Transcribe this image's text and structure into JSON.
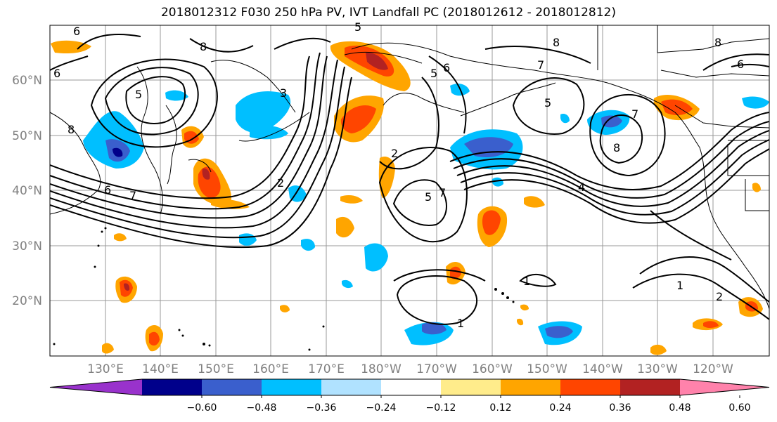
{
  "title": "2018012312 F030 250 hPa PV, IVT Landfall PC (2018012612 - 2018012812)",
  "map": {
    "lat_labels": [
      "60°N",
      "50°N",
      "40°N",
      "30°N",
      "20°N"
    ],
    "lon_labels": [
      "130°E",
      "140°E",
      "150°E",
      "160°E",
      "170°E",
      "180°W",
      "170°W",
      "160°W",
      "150°W",
      "140°W",
      "130°W",
      "120°W"
    ],
    "pv_contour_labels": [
      "6",
      "8",
      "5",
      "8",
      "6",
      "7",
      "5",
      "6",
      "5",
      "7",
      "8",
      "5",
      "7",
      "8",
      "6",
      "2",
      "5",
      "7",
      "3",
      "2",
      "4",
      "1",
      "1",
      "1",
      "2",
      "8",
      "6"
    ]
  },
  "colorbar": {
    "colors": [
      "#9932cc",
      "#00008b",
      "#3a5fcd",
      "#00bfff",
      "#b0e2ff",
      "#ffffff",
      "#ffec8b",
      "#ffa500",
      "#ff4500",
      "#b22222",
      "#ff82ab"
    ],
    "tick_labels": [
      "−0.60",
      "−0.48",
      "−0.36",
      "−0.24",
      "−0.12",
      "0.12",
      "0.24",
      "0.36",
      "0.48",
      "0.60"
    ]
  }
}
